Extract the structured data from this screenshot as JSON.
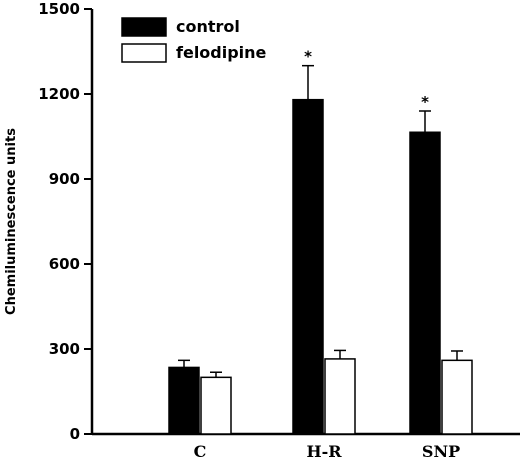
{
  "chart_data": {
    "type": "bar",
    "categories": [
      "C",
      "H-R",
      "SNP"
    ],
    "ylabel": "Chemiluminescence units",
    "ylim": [
      0,
      1500
    ],
    "yticks": [
      0,
      300,
      600,
      900,
      1200,
      1500
    ],
    "series": [
      {
        "name": "control",
        "values": [
          235,
          1180,
          1065
        ],
        "errors": [
          25,
          120,
          75
        ],
        "fill": "#000000"
      },
      {
        "name": "felodipine",
        "values": [
          200,
          265,
          260
        ],
        "errors": [
          18,
          30,
          33
        ],
        "fill": "#ffffff"
      }
    ],
    "annotations": [
      {
        "text": "*",
        "category": "H-R",
        "series": "control"
      },
      {
        "text": "*",
        "category": "SNP",
        "series": "control"
      }
    ],
    "legend": "top-left",
    "grid": false
  }
}
